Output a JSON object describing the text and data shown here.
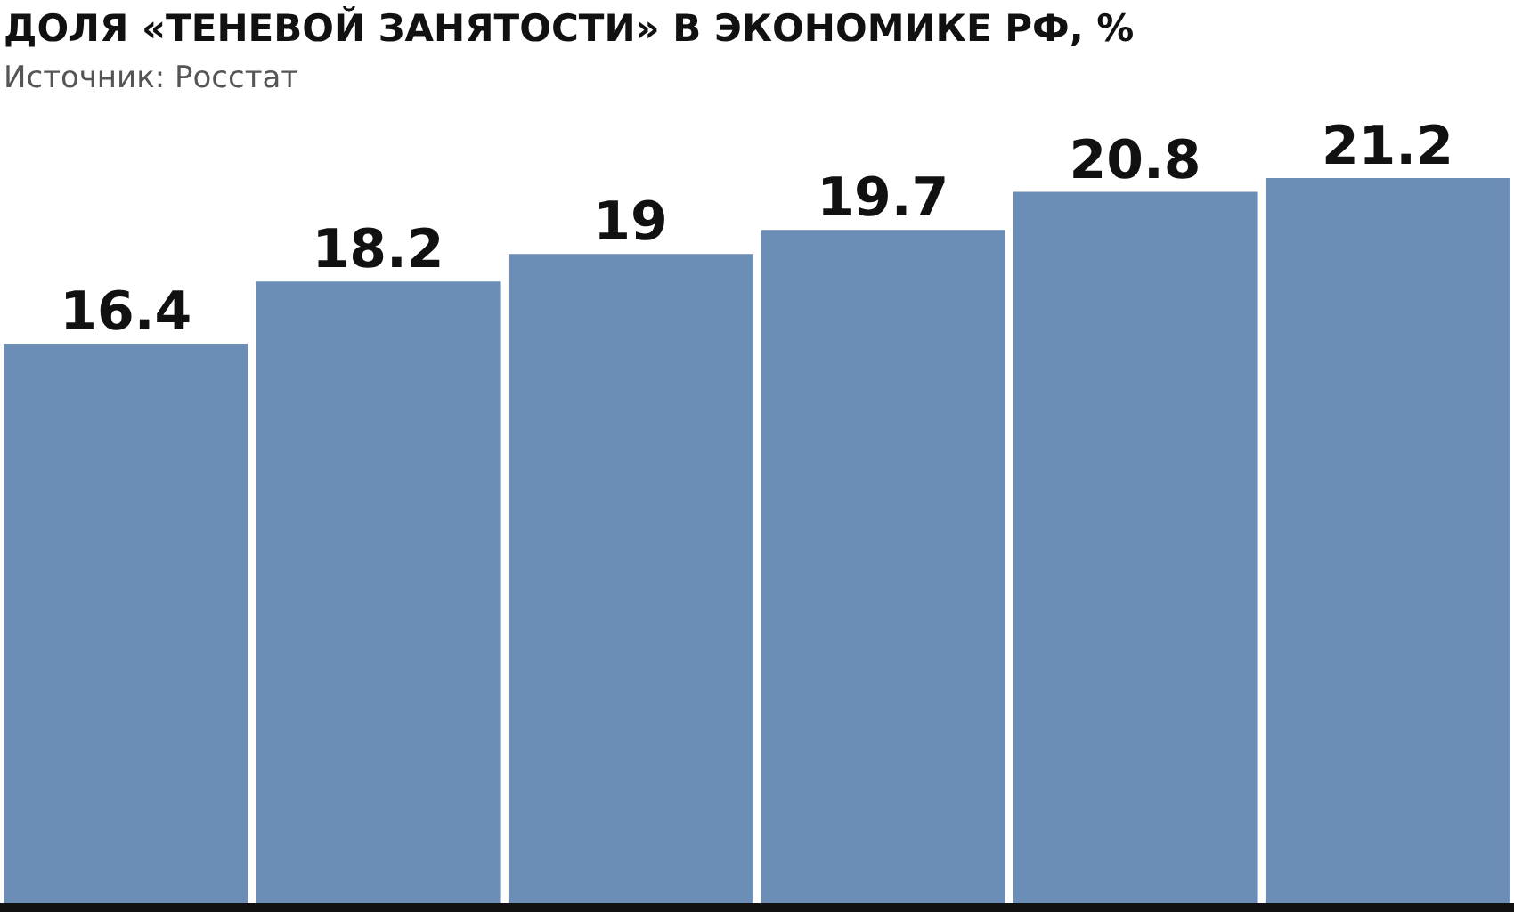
{
  "chart_data": {
    "type": "bar",
    "title": "ДОЛЯ «ТЕНЕВОЙ ЗАНЯТОСТИ» В ЭКОНОМИКЕ РФ, %",
    "subtitle": "Источник: Росстат",
    "categories": [
      null,
      null,
      null,
      null,
      null,
      null
    ],
    "values": [
      16.4,
      18.2,
      19,
      19.7,
      20.8,
      21.2
    ],
    "color": "#6b8db6",
    "data_labels": true
  }
}
